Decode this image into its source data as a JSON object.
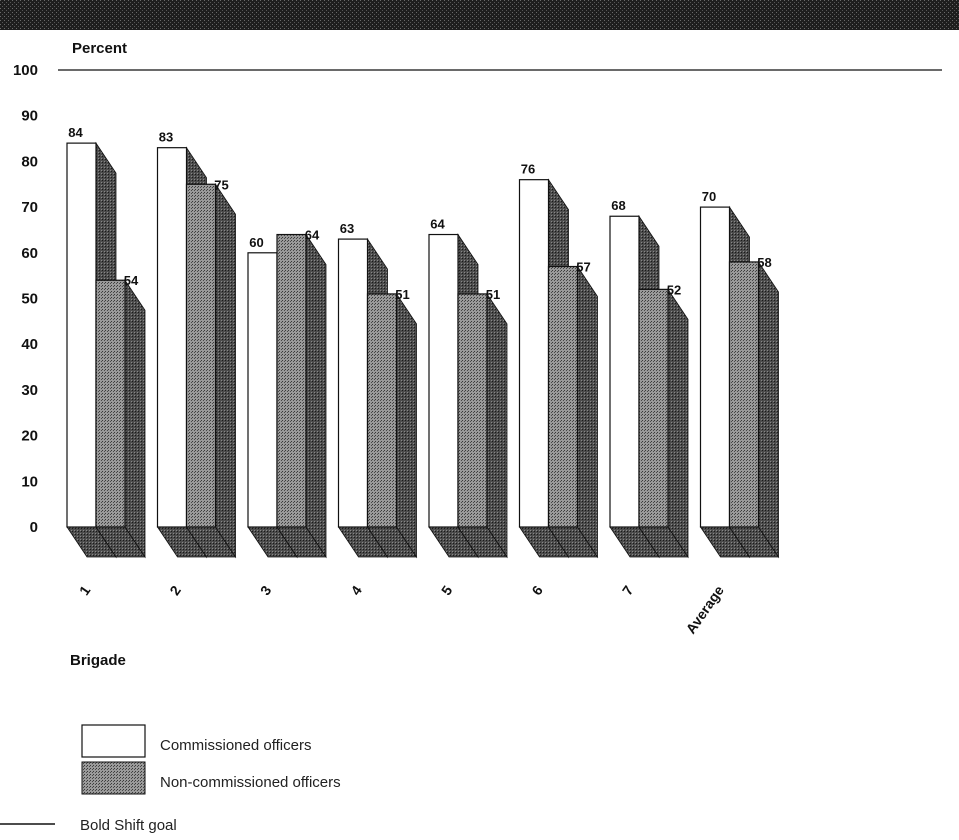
{
  "chart_data": {
    "type": "bar",
    "ylabel": "Percent",
    "xlabel": "Brigade",
    "ylim": [
      0,
      100
    ],
    "yticks": [
      "0",
      "10",
      "20",
      "30",
      "40",
      "50",
      "60",
      "70",
      "80",
      "90",
      "100"
    ],
    "categories": [
      "1",
      "2",
      "3",
      "4",
      "5",
      "6",
      "7",
      "Average"
    ],
    "series": [
      {
        "name": "Commissioned officers",
        "color": "#ffffff",
        "values": [
          84,
          83,
          60,
          63,
          64,
          76,
          68,
          70
        ]
      },
      {
        "name": "Non-commissioned officers",
        "color": "#8a8a8a",
        "values": [
          54,
          75,
          64,
          51,
          51,
          57,
          52,
          58
        ]
      }
    ],
    "goal": {
      "label": "Bold Shift goal",
      "value": 100
    },
    "grid": false,
    "legend_position": "bottom-left"
  }
}
